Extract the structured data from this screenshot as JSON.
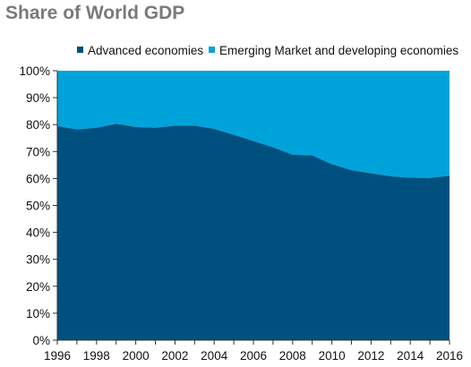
{
  "chart_data": {
    "type": "area",
    "stacked": true,
    "percent": true,
    "title": "Share of World GDP",
    "x": [
      1996,
      1997,
      1998,
      1999,
      2000,
      2001,
      2002,
      2003,
      2004,
      2005,
      2006,
      2007,
      2008,
      2009,
      2010,
      2011,
      2012,
      2013,
      2014,
      2015,
      2016
    ],
    "x_ticks": [
      "1996",
      "1998",
      "2000",
      "2002",
      "2004",
      "2006",
      "2008",
      "2010",
      "2012",
      "2014",
      "2016"
    ],
    "y_ticks": [
      "0%",
      "10%",
      "20%",
      "30%",
      "40%",
      "50%",
      "60%",
      "70%",
      "80%",
      "90%",
      "100%"
    ],
    "ylim": [
      0,
      100
    ],
    "xlim": [
      1996,
      2016
    ],
    "legend_position": "top",
    "grid": false,
    "series": [
      {
        "name": "Advanced economies",
        "color": "#00507f",
        "values": [
          79.5,
          78.2,
          78.8,
          80.3,
          79.1,
          78.8,
          79.6,
          79.6,
          78.4,
          76.2,
          73.9,
          71.6,
          68.8,
          68.6,
          65.3,
          63.1,
          61.9,
          60.8,
          60.3,
          60.2,
          61.0
        ]
      },
      {
        "name": "Emerging Market and developing economies",
        "color": "#00a3d9",
        "values": [
          20.5,
          21.8,
          21.2,
          19.7,
          20.9,
          21.2,
          20.4,
          20.4,
          21.6,
          23.8,
          26.1,
          28.4,
          31.2,
          31.4,
          34.7,
          36.9,
          38.1,
          39.2,
          39.7,
          39.8,
          39.0
        ]
      }
    ]
  }
}
